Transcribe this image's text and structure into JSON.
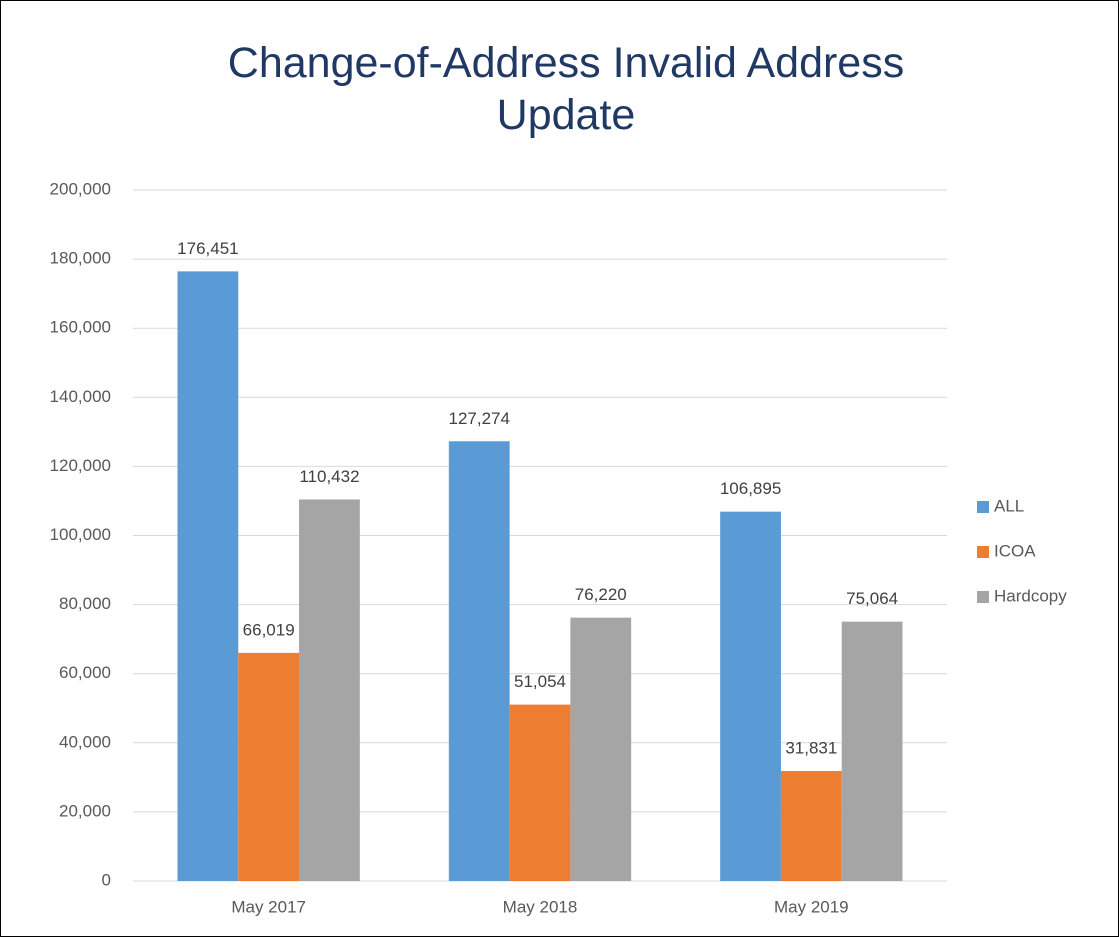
{
  "chart_data": {
    "type": "bar",
    "title": "Change-of-Address Invalid Address Update",
    "categories": [
      "May 2017",
      "May 2018",
      "May 2019"
    ],
    "series": [
      {
        "name": "ALL",
        "color": "#5b9bd5",
        "values": [
          176451,
          127274,
          106895
        ],
        "value_labels": [
          "176,451",
          "127,274",
          "106,895"
        ]
      },
      {
        "name": "ICOA",
        "color": "#ed7d31",
        "values": [
          66019,
          51054,
          31831
        ],
        "value_labels": [
          "66,019",
          "51,054",
          "31,831"
        ]
      },
      {
        "name": "Hardcopy",
        "color": "#a5a5a5",
        "values": [
          110432,
          76220,
          75064
        ],
        "value_labels": [
          "110,432",
          "76,220",
          "75,064"
        ]
      }
    ],
    "ylim": [
      0,
      200000
    ],
    "yticks": [
      0,
      {
        "value": 20000,
        "label": "20,000"
      },
      {
        "value": 40000,
        "label": "40,000"
      },
      {
        "value": 60000,
        "label": "60,000"
      },
      {
        "value": 80000,
        "label": "80,000"
      },
      {
        "value": 100000,
        "label": "100,000"
      },
      {
        "value": 120000,
        "label": "120,000"
      },
      {
        "value": 140000,
        "label": "140,000"
      },
      {
        "value": 160000,
        "label": "160,000"
      },
      {
        "value": 180000,
        "label": "180,000"
      },
      {
        "value": 200000,
        "label": "200,000"
      }
    ],
    "grid": true,
    "legend": "right"
  }
}
